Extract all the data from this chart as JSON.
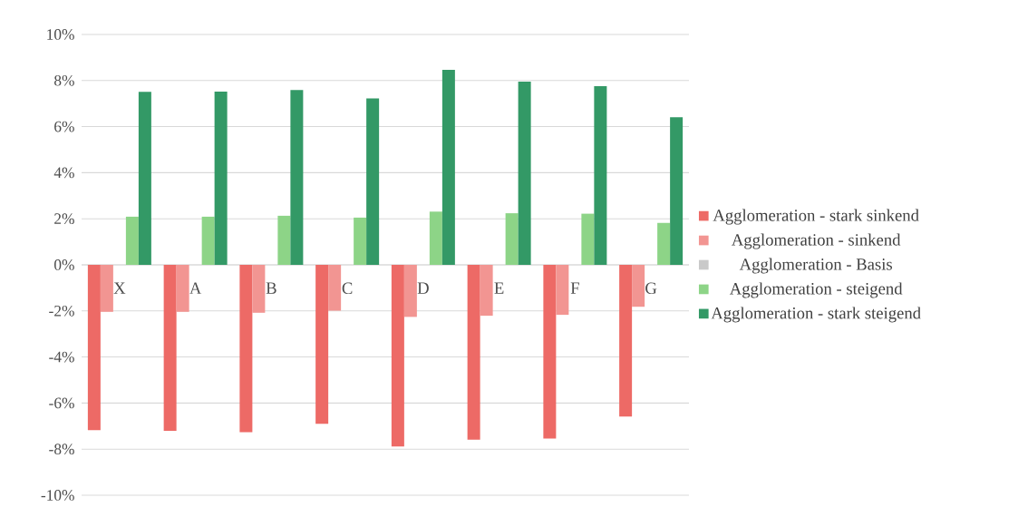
{
  "chart_data": {
    "type": "bar",
    "categories": [
      "X",
      "A",
      "B",
      "C",
      "D",
      "E",
      "F",
      "G"
    ],
    "series": [
      {
        "name": "Agglomeration - stark sinkend",
        "color": "#ed6a66",
        "values": [
          -7.18,
          -7.21,
          -7.26,
          -6.9,
          -7.88,
          -7.59,
          -7.54,
          -6.59
        ]
      },
      {
        "name": "Agglomeration - sinkend",
        "color": "#f29592",
        "values": [
          -2.04,
          -2.04,
          -2.08,
          -1.99,
          -2.26,
          -2.21,
          -2.17,
          -1.82
        ]
      },
      {
        "name": "Agglomeration - Basis",
        "color": "#c9c9c9",
        "values": [
          0,
          0,
          0,
          0,
          0,
          0,
          0,
          0
        ]
      },
      {
        "name": "Agglomeration - steigend",
        "color": "#8dd487",
        "values": [
          2.09,
          2.09,
          2.13,
          2.05,
          2.31,
          2.24,
          2.22,
          1.82
        ]
      },
      {
        "name": "Agglomeration - stark steigend",
        "color": "#339966",
        "values": [
          7.51,
          7.52,
          7.59,
          7.22,
          8.46,
          7.95,
          7.76,
          6.41
        ]
      }
    ],
    "ylim": [
      -10,
      10
    ],
    "yticks": [
      {
        "value": -10,
        "label": "-10%"
      },
      {
        "value": -8,
        "label": "-8%"
      },
      {
        "value": -6,
        "label": "-6%"
      },
      {
        "value": -4,
        "label": "-4%"
      },
      {
        "value": -2,
        "label": "-2%"
      },
      {
        "value": 0,
        "label": "0%"
      },
      {
        "value": 2,
        "label": "2%"
      },
      {
        "value": 4,
        "label": "4%"
      },
      {
        "value": 6,
        "label": "6%"
      },
      {
        "value": 8,
        "label": "8%"
      },
      {
        "value": 10,
        "label": "10%"
      }
    ],
    "grid": "y",
    "legend": "right"
  }
}
